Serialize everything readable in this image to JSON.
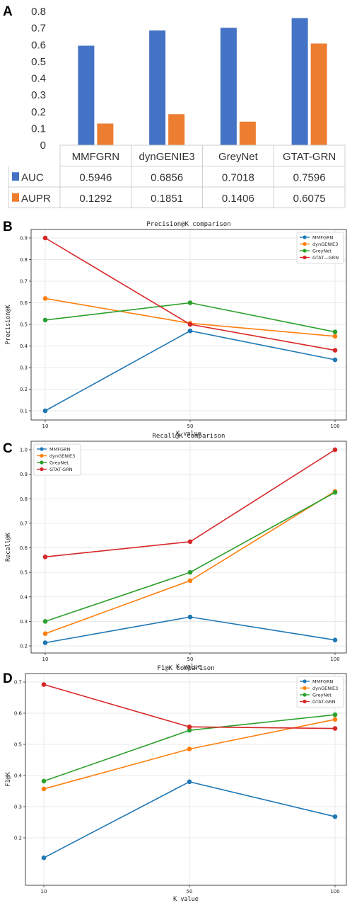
{
  "chart_data": [
    {
      "panel": "A",
      "type": "bar",
      "categories": [
        "MMFGRN",
        "dynGENIE3",
        "GreyNet",
        "GTAT-GRN"
      ],
      "series": [
        {
          "name": "AUC",
          "values": [
            0.5946,
            0.6856,
            0.7018,
            0.7596
          ],
          "labels": [
            "0.5946",
            "0.6856",
            "0.7018",
            "0.7596"
          ],
          "color": "#4472C4"
        },
        {
          "name": "AUPR",
          "values": [
            0.1292,
            0.1851,
            0.1406,
            0.6075
          ],
          "labels": [
            "0.1292",
            "0.1851",
            "0.1406",
            "0.6075"
          ],
          "color": "#ED7D31"
        }
      ],
      "ylim": [
        0,
        0.8
      ],
      "yticks": [
        "0",
        "0.1",
        "0.2",
        "0.3",
        "0.4",
        "0.5",
        "0.6",
        "0.7",
        "0.8"
      ],
      "data_table": true
    },
    {
      "panel": "B",
      "type": "line",
      "title": "Precision@K comparison",
      "xlabel": "K value",
      "ylabel": "Precision@K",
      "x": [
        "10",
        "50",
        "100"
      ],
      "series": [
        {
          "name": "MMFGRN",
          "values": [
            0.1,
            0.47,
            0.336
          ],
          "color": "#1f77b4"
        },
        {
          "name": "dynGENIE3",
          "values": [
            0.62,
            0.505,
            0.445
          ],
          "color": "#ff7f0e"
        },
        {
          "name": "GreyNet",
          "values": [
            0.52,
            0.6,
            0.465
          ],
          "color": "#2ca02c"
        },
        {
          "name": "GTAT—GRN",
          "values": [
            0.9,
            0.5,
            0.38
          ],
          "color": "#d62728"
        }
      ],
      "ylim": [
        0.1,
        0.9
      ],
      "yticks": [
        "0.1",
        "0.2",
        "0.3",
        "0.4",
        "0.5",
        "0.6",
        "0.7",
        "0.8",
        "0.9"
      ],
      "grid": true,
      "legend": "top-right"
    },
    {
      "panel": "C",
      "type": "line",
      "title": "Recall@K comparison",
      "xlabel": "K value",
      "ylabel": "Recall@K",
      "x": [
        "10",
        "50",
        "100"
      ],
      "series": [
        {
          "name": "MMFGRN",
          "values": [
            0.213,
            0.318,
            0.224
          ],
          "color": "#1f77b4"
        },
        {
          "name": "dynGENIE3",
          "values": [
            0.25,
            0.466,
            0.83
          ],
          "color": "#ff7f0e"
        },
        {
          "name": "GreyNet",
          "values": [
            0.3,
            0.5,
            0.826
          ],
          "color": "#2ca02c"
        },
        {
          "name": "GTAT-GRN",
          "values": [
            0.563,
            0.625,
            1.0
          ],
          "color": "#d62728"
        }
      ],
      "ylim": [
        0.2,
        1.0
      ],
      "yticks": [
        "0.2",
        "0.3",
        "0.4",
        "0.5",
        "0.6",
        "0.7",
        "0.8",
        "0.9",
        "1.0"
      ],
      "grid": true,
      "legend": "top-left"
    },
    {
      "panel": "D",
      "type": "line",
      "title": "F1@K comparison",
      "xlabel": "K value",
      "ylabel": "F1@K",
      "x": [
        "10",
        "50",
        "100"
      ],
      "series": [
        {
          "name": "MMFGRN",
          "values": [
            0.136,
            0.38,
            0.268
          ],
          "color": "#1f77b4"
        },
        {
          "name": "dynGENIE3",
          "values": [
            0.357,
            0.485,
            0.58
          ],
          "color": "#ff7f0e"
        },
        {
          "name": "GreyNet",
          "values": [
            0.382,
            0.545,
            0.595
          ],
          "color": "#2ca02c"
        },
        {
          "name": "GTAT-GRN",
          "values": [
            0.692,
            0.556,
            0.551
          ],
          "color": "#d62728"
        }
      ],
      "ylim": [
        0.2,
        0.7
      ],
      "yticks": [
        "0.2",
        "0.3",
        "0.4",
        "0.5",
        "0.6",
        "0.7"
      ],
      "grid": true,
      "legend": "top-right"
    }
  ]
}
